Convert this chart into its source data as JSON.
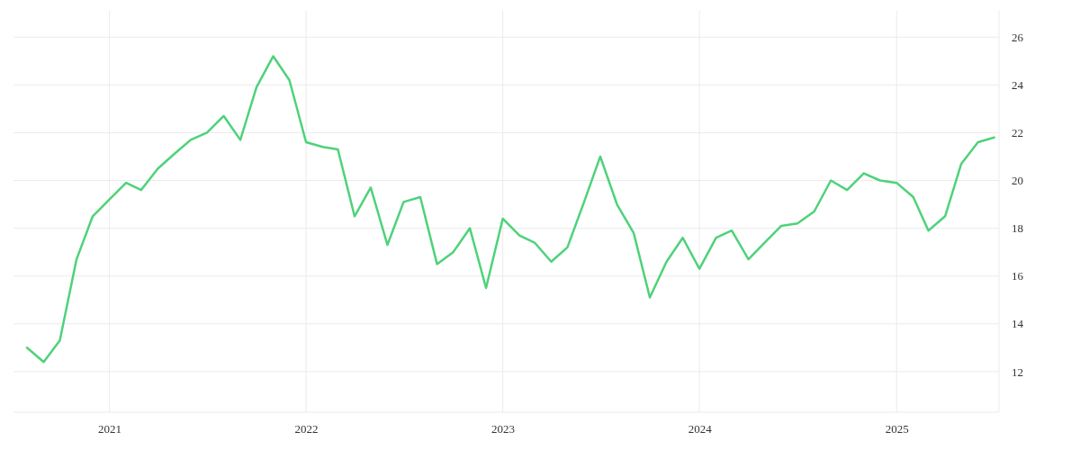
{
  "chart_data": {
    "type": "line",
    "x": [
      "2020-08",
      "2020-09",
      "2020-10",
      "2020-11",
      "2020-12",
      "2021-01",
      "2021-02",
      "2021-03",
      "2021-04",
      "2021-05",
      "2021-06",
      "2021-07",
      "2021-08",
      "2021-09",
      "2021-10",
      "2021-11",
      "2021-12",
      "2022-01",
      "2022-02",
      "2022-03",
      "2022-04",
      "2022-05",
      "2022-06",
      "2022-07",
      "2022-08",
      "2022-09",
      "2022-10",
      "2022-11",
      "2022-12",
      "2023-01",
      "2023-02",
      "2023-03",
      "2023-04",
      "2023-05",
      "2023-06",
      "2023-07",
      "2023-08",
      "2023-09",
      "2023-10",
      "2023-11",
      "2023-12",
      "2024-01",
      "2024-02",
      "2024-03",
      "2024-04",
      "2024-05",
      "2024-06",
      "2024-07",
      "2024-08",
      "2024-09",
      "2024-10",
      "2024-11",
      "2024-12",
      "2025-01",
      "2025-02",
      "2025-03",
      "2025-04",
      "2025-05",
      "2025-06",
      "2025-07"
    ],
    "series": [
      {
        "color": "#4ed27a",
        "values": [
          13.0,
          12.4,
          13.3,
          16.7,
          18.5,
          19.2,
          19.9,
          19.6,
          20.5,
          21.1,
          21.7,
          22.0,
          22.7,
          21.7,
          23.9,
          25.2,
          24.2,
          21.6,
          21.4,
          21.3,
          18.5,
          19.7,
          17.3,
          19.1,
          19.3,
          16.5,
          17.0,
          18.0,
          15.5,
          18.4,
          17.7,
          17.4,
          16.6,
          17.2,
          19.1,
          21.0,
          19.0,
          17.8,
          15.1,
          16.6,
          17.6,
          16.3,
          17.6,
          17.9,
          16.7,
          17.4,
          18.1,
          18.2,
          18.7,
          20.0,
          19.6,
          20.3,
          20.0,
          19.9,
          19.3,
          17.9,
          18.5,
          20.7,
          21.6,
          21.8
        ]
      }
    ],
    "xlim": [
      "2020-07-07",
      "2025-07-10"
    ],
    "xticks": [
      "2021",
      "2022",
      "2023",
      "2024",
      "2025"
    ],
    "ylim": [
      10.3,
      27.1
    ],
    "yticks": [
      12,
      14,
      16,
      18,
      20,
      22,
      24,
      26
    ],
    "grid": true,
    "marker": "none",
    "line_style": "solid"
  }
}
